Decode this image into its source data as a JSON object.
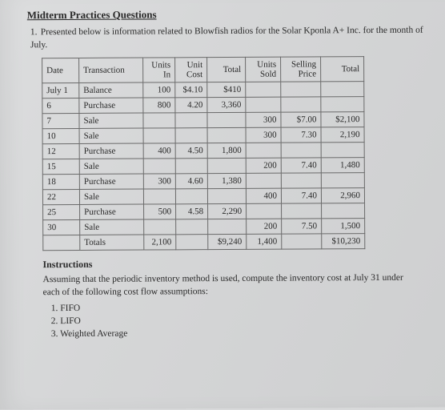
{
  "title": "Midterm Practices Questions",
  "intro_num": "1.",
  "intro_text": "Presented below is information related to Blowfish radios for the Solar Kponla A+ Inc. for the month of July.",
  "headers": {
    "date": "Date",
    "transaction": "Transaction",
    "units_in": "Units In",
    "unit_cost": "Unit Cost",
    "total1": "Total",
    "units_sold": "Units Sold",
    "selling_price": "Selling Price",
    "total2": "Total"
  },
  "rows": [
    {
      "date": "July 1",
      "trans": "Balance",
      "uin": "100",
      "ucost": "$4.10",
      "tot1": "$410",
      "usold": "",
      "price": "",
      "tot2": ""
    },
    {
      "date": "6",
      "trans": "Purchase",
      "uin": "800",
      "ucost": "4.20",
      "tot1": "3,360",
      "usold": "",
      "price": "",
      "tot2": ""
    },
    {
      "date": "7",
      "trans": "Sale",
      "uin": "",
      "ucost": "",
      "tot1": "",
      "usold": "300",
      "price": "$7.00",
      "tot2": "$2,100"
    },
    {
      "date": "10",
      "trans": "Sale",
      "uin": "",
      "ucost": "",
      "tot1": "",
      "usold": "300",
      "price": "7.30",
      "tot2": "2,190"
    },
    {
      "date": "12",
      "trans": "Purchase",
      "uin": "400",
      "ucost": "4.50",
      "tot1": "1,800",
      "usold": "",
      "price": "",
      "tot2": ""
    },
    {
      "date": "15",
      "trans": "Sale",
      "uin": "",
      "ucost": "",
      "tot1": "",
      "usold": "200",
      "price": "7.40",
      "tot2": "1,480"
    },
    {
      "date": "18",
      "trans": "Purchase",
      "uin": "300",
      "ucost": "4.60",
      "tot1": "1,380",
      "usold": "",
      "price": "",
      "tot2": ""
    },
    {
      "date": "22",
      "trans": "Sale",
      "uin": "",
      "ucost": "",
      "tot1": "",
      "usold": "400",
      "price": "7.40",
      "tot2": "2,960"
    },
    {
      "date": "25",
      "trans": "Purchase",
      "uin": "500",
      "ucost": "4.58",
      "tot1": "2,290",
      "usold": "",
      "price": "",
      "tot2": ""
    },
    {
      "date": "30",
      "trans": "Sale",
      "uin": "",
      "ucost": "",
      "tot1": "",
      "usold": "200",
      "price": "7.50",
      "tot2": "1,500"
    },
    {
      "date": "",
      "trans": "Totals",
      "uin": "2,100",
      "ucost": "",
      "tot1": "$9,240",
      "usold": "1,400",
      "price": "",
      "tot2": "$10,230"
    }
  ],
  "instructions_h": "Instructions",
  "instructions_p": "Assuming that the periodic inventory method is used, compute the inventory cost at July 31 under each of the following cost flow assumptions:",
  "opts": {
    "a": "1. FIFO",
    "b": "2. LIFO",
    "c": "3. Weighted Average"
  }
}
